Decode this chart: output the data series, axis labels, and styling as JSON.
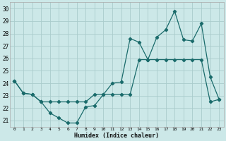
{
  "xlabel": "Humidex (Indice chaleur)",
  "x_ticks": [
    0,
    1,
    2,
    3,
    4,
    5,
    6,
    7,
    8,
    9,
    10,
    11,
    12,
    13,
    14,
    15,
    16,
    17,
    18,
    19,
    20,
    21,
    22,
    23
  ],
  "ylim": [
    20.5,
    30.5
  ],
  "xlim": [
    -0.5,
    23.5
  ],
  "yticks": [
    21,
    22,
    23,
    24,
    25,
    26,
    27,
    28,
    29,
    30
  ],
  "bg_color": "#cce8e8",
  "grid_color": "#aacccc",
  "line_color": "#1a6b6b",
  "line1_x": [
    0,
    1,
    2,
    3,
    4,
    5,
    6,
    7,
    8,
    9,
    10,
    11,
    12,
    13,
    14,
    15,
    16,
    17,
    18,
    19,
    20,
    21,
    22,
    23
  ],
  "line1_y": [
    24.2,
    23.2,
    23.1,
    22.5,
    21.6,
    21.2,
    20.8,
    20.8,
    22.1,
    22.2,
    23.1,
    24.0,
    24.1,
    27.6,
    27.3,
    25.9,
    27.7,
    28.3,
    29.8,
    27.5,
    27.4,
    28.8,
    24.5,
    22.7
  ],
  "line2_x": [
    0,
    1,
    2,
    3,
    4,
    5,
    6,
    7,
    8,
    9,
    10,
    11,
    12,
    13,
    14,
    15,
    16,
    17,
    18,
    19,
    20,
    21,
    22,
    23
  ],
  "line2_y": [
    24.2,
    23.2,
    23.1,
    22.5,
    22.5,
    22.5,
    22.5,
    22.5,
    22.5,
    23.1,
    23.1,
    23.1,
    23.1,
    23.1,
    25.9,
    25.9,
    25.9,
    25.9,
    25.9,
    25.9,
    25.9,
    25.9,
    22.5,
    22.7
  ]
}
